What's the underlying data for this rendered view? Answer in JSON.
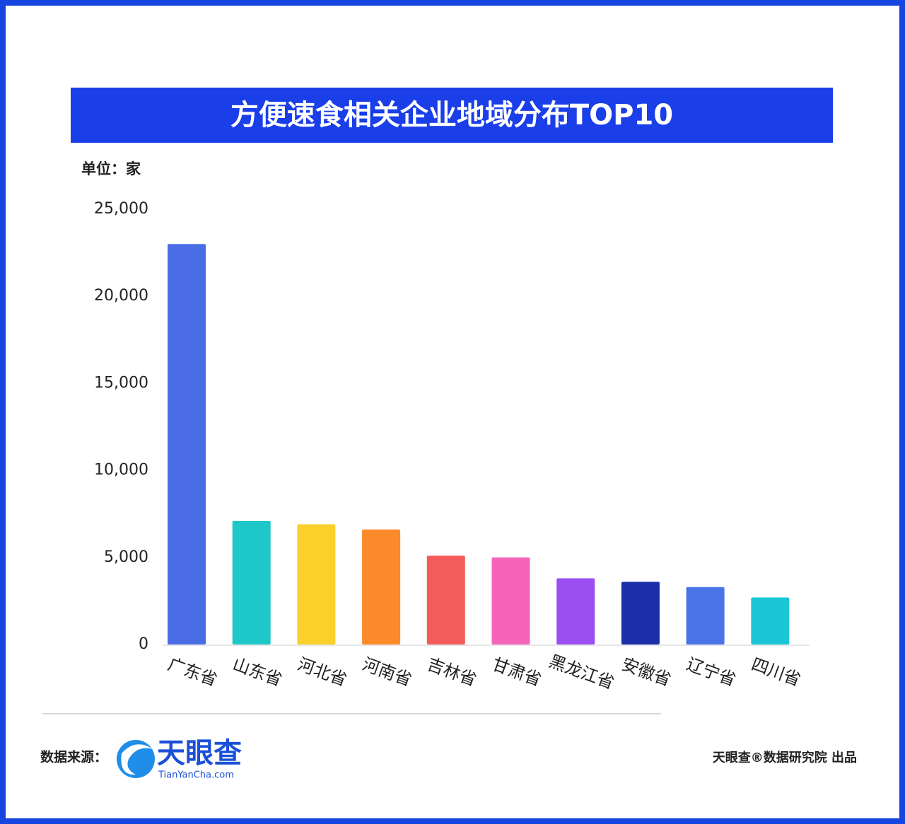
{
  "chart_data": {
    "type": "bar",
    "title": "方便速食相关企业地域分布TOP10",
    "unit_label": "单位：家",
    "categories": [
      "广东省",
      "山东省",
      "河北省",
      "河南省",
      "吉林省",
      "甘肃省",
      "黑龙江省",
      "安徽省",
      "辽宁省",
      "四川省"
    ],
    "values": [
      23000,
      7100,
      6900,
      6600,
      5100,
      5000,
      3800,
      3600,
      3300,
      2700
    ],
    "colors": [
      "#4a6de5",
      "#1ec8c8",
      "#fcd02a",
      "#fb8a2a",
      "#f45b5b",
      "#f564b8",
      "#9b4ff0",
      "#1b2fa8",
      "#4a73e8",
      "#19c6d6"
    ],
    "ylim": [
      0,
      25000
    ],
    "yticks": [
      0,
      {
        "value": 5000,
        "label": "5,000"
      },
      {
        "value": 10000,
        "label": "10,000"
      },
      {
        "value": 15000,
        "label": "15,000"
      },
      {
        "value": 20000,
        "label": "20,000"
      },
      {
        "value": 25000,
        "label": "25,000"
      }
    ],
    "grid": false
  },
  "footer": {
    "source_label": "数据来源：",
    "logo_name": "天眼查",
    "logo_url": "TianYanCha.com",
    "credit": "天眼查®数据研究院 出品"
  }
}
